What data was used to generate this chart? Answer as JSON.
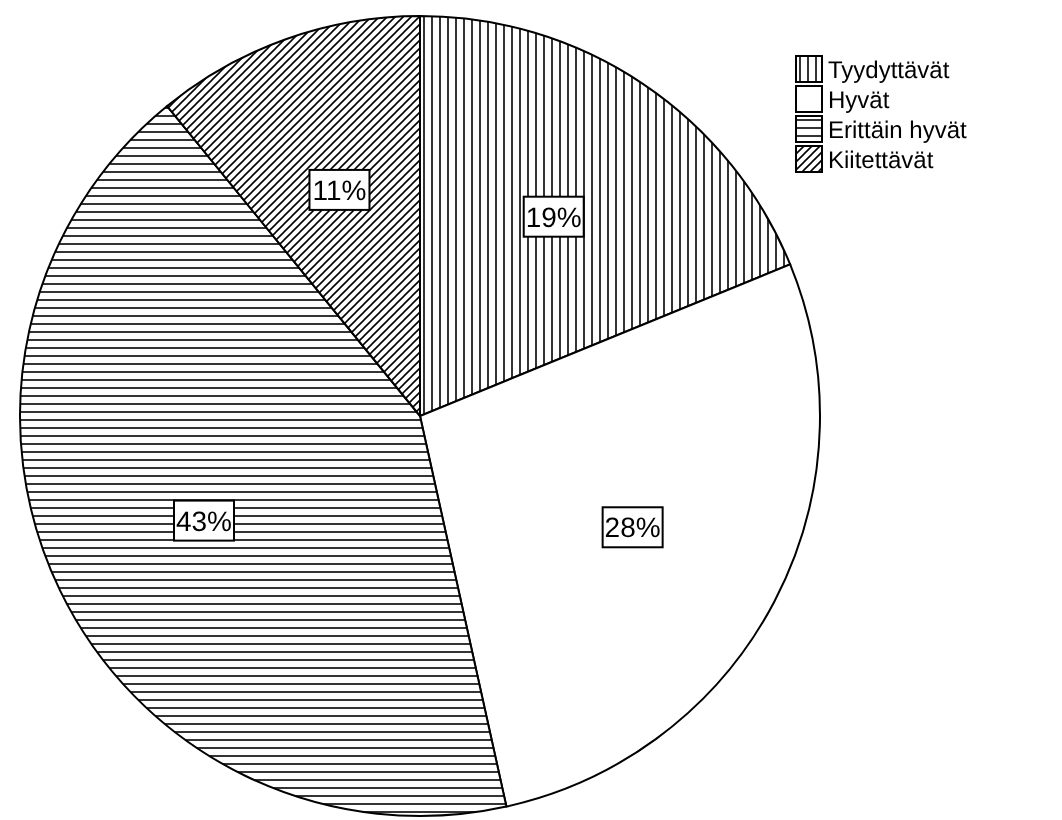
{
  "chart_data": {
    "type": "pie",
    "categories": [
      "Tyydyttävät",
      "Hyvät",
      "Erittäin hyvät",
      "Kiitettävät"
    ],
    "values": [
      19,
      28,
      43,
      11
    ],
    "value_labels": [
      "19%",
      "28%",
      "43%",
      "11%"
    ],
    "colors": [
      "#000000",
      "#ffffff",
      "#000000",
      "#000000"
    ],
    "legend": "top right"
  }
}
